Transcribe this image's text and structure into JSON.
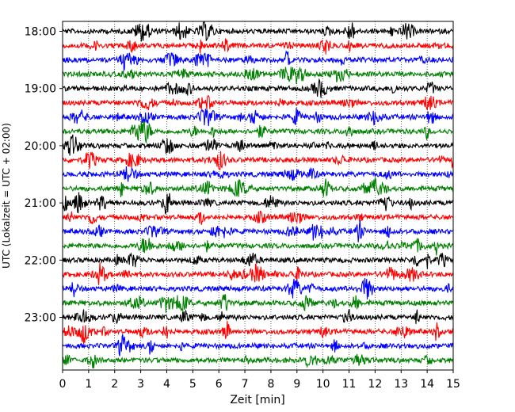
{
  "chart_data": {
    "type": "line",
    "title": "",
    "xlabel": "Zeit  [min]",
    "ylabel": "UTC (Lokalzeit = UTC + 02:00)",
    "xlim": [
      0,
      15
    ],
    "x_ticks": [
      0,
      1,
      2,
      3,
      4,
      5,
      6,
      7,
      8,
      9,
      10,
      11,
      12,
      13,
      14,
      15
    ],
    "x_tick_labels": [
      "0",
      "1",
      "2",
      "3",
      "4",
      "5",
      "6",
      "7",
      "8",
      "9",
      "10",
      "11",
      "12",
      "13",
      "14",
      "15"
    ],
    "y_tick_labels": [
      "18:00",
      "19:00",
      "20:00",
      "21:00",
      "22:00",
      "23:00"
    ],
    "y_tick_rows": [
      0,
      4,
      8,
      12,
      16,
      20
    ],
    "row_interval_minutes": 15,
    "rows_start": "18:00",
    "rows_count": 24,
    "trace_colors": [
      "#000000",
      "#ff0000",
      "#0000ff",
      "#008000"
    ],
    "grid": "vertical dotted lines at each minute"
  }
}
